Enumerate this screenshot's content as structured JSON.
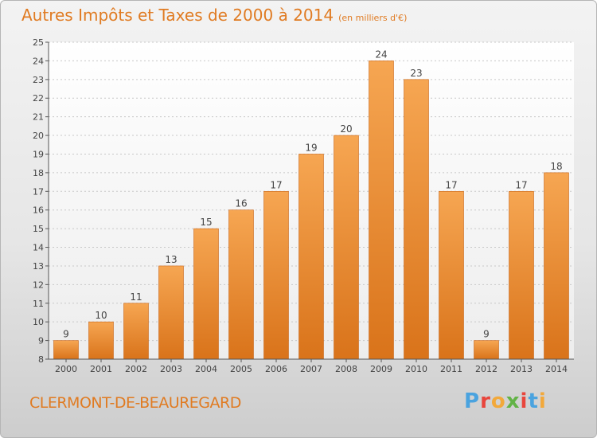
{
  "header": {
    "title": "Autres Impôts et Taxes de 2000 à 2014",
    "unit": "(en milliers d'€)"
  },
  "footer": {
    "commune": "CLERMONT-DE-BEAUREGARD",
    "brand": "Proxiti"
  },
  "colors": {
    "accent": "#e07b22",
    "bar_top": "#f6a652",
    "bar_bottom": "#d9731a",
    "grid": "#c8c8c8"
  },
  "brand_colors": [
    "#4aa3df",
    "#e8453c",
    "#f2a93b",
    "#62b346",
    "#e8453c",
    "#4aa3df",
    "#f2a93b"
  ],
  "chart_data": {
    "type": "bar",
    "title": "Autres Impôts et Taxes de 2000 à 2014",
    "subtitle": "(en milliers d'€)",
    "xlabel": "",
    "ylabel": "",
    "categories": [
      "2000",
      "2001",
      "2002",
      "2003",
      "2004",
      "2005",
      "2006",
      "2007",
      "2008",
      "2009",
      "2010",
      "2011",
      "2012",
      "2013",
      "2014"
    ],
    "values": [
      9,
      10,
      11,
      13,
      15,
      16,
      17,
      19,
      20,
      24,
      23,
      17,
      9,
      17,
      18
    ],
    "ylim": [
      8,
      25
    ],
    "yticks": [
      8,
      9,
      10,
      11,
      12,
      13,
      14,
      15,
      16,
      17,
      18,
      19,
      20,
      21,
      22,
      23,
      24,
      25
    ],
    "grid": true,
    "data_labels": true
  }
}
